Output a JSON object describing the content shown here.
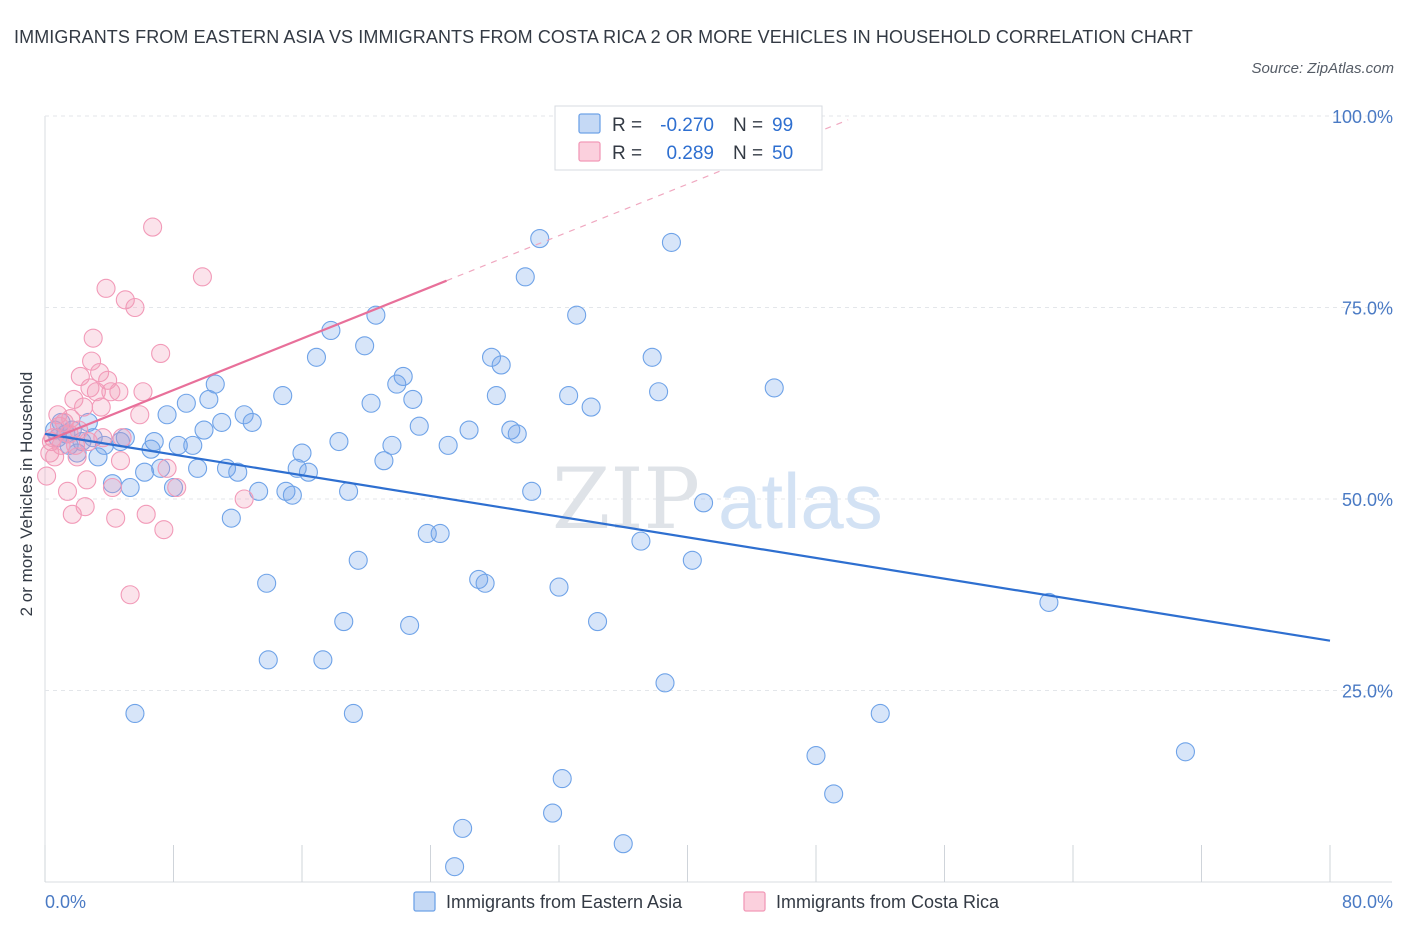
{
  "title": "IMMIGRANTS FROM EASTERN ASIA VS IMMIGRANTS FROM COSTA RICA 2 OR MORE VEHICLES IN HOUSEHOLD CORRELATION CHART",
  "source": "Source: ZipAtlas.com",
  "watermark": {
    "zip": "ZIP",
    "atlas": "atlas"
  },
  "legend": {
    "r_label": "R =",
    "n_label": "N =",
    "rows": [
      {
        "r": "-0.270",
        "n": "99",
        "color": "#6fa3e8"
      },
      {
        "r": "0.289",
        "n": "50",
        "color": "#f29ab8"
      }
    ]
  },
  "chart_data": {
    "type": "scatter",
    "ylabel": "2 or more Vehicles in Household",
    "xlim": [
      0,
      80
    ],
    "ylim": [
      0,
      100
    ],
    "x_tick_labels": [
      "0.0%",
      "80.0%"
    ],
    "y_ticks": [
      {
        "value": 25,
        "label": "25.0%"
      },
      {
        "value": 50,
        "label": "50.0%"
      },
      {
        "value": 75,
        "label": "75.0%"
      },
      {
        "value": 100,
        "label": "100.0%"
      }
    ],
    "grid": true,
    "series": [
      {
        "name": "Immigrants from Eastern Asia",
        "color": "#6fa3e8",
        "trend": {
          "x0": 0,
          "y0": 58.5,
          "x1": 80,
          "y1": 31.5
        },
        "points": [
          [
            0.6,
            59
          ],
          [
            0.8,
            58
          ],
          [
            1.0,
            60
          ],
          [
            1.3,
            58.5
          ],
          [
            1.5,
            57
          ],
          [
            1.7,
            59
          ],
          [
            2.0,
            56
          ],
          [
            2.3,
            57.5
          ],
          [
            2.7,
            60
          ],
          [
            3.0,
            58
          ],
          [
            3.3,
            55.5
          ],
          [
            3.7,
            57
          ],
          [
            4.2,
            52
          ],
          [
            4.7,
            57.5
          ],
          [
            5.0,
            58
          ],
          [
            5.3,
            51.5
          ],
          [
            5.6,
            22
          ],
          [
            6.2,
            53.5
          ],
          [
            6.6,
            56.5
          ],
          [
            6.8,
            57.5
          ],
          [
            7.2,
            54
          ],
          [
            7.6,
            61
          ],
          [
            8.0,
            51.5
          ],
          [
            8.3,
            57
          ],
          [
            8.8,
            62.5
          ],
          [
            9.2,
            57
          ],
          [
            9.5,
            54
          ],
          [
            9.9,
            59
          ],
          [
            10.2,
            63
          ],
          [
            10.6,
            65
          ],
          [
            11.0,
            60
          ],
          [
            11.3,
            54
          ],
          [
            11.6,
            47.5
          ],
          [
            12.0,
            53.5
          ],
          [
            12.4,
            61
          ],
          [
            12.9,
            60
          ],
          [
            13.3,
            51
          ],
          [
            13.8,
            39
          ],
          [
            13.9,
            29
          ],
          [
            14.8,
            63.5
          ],
          [
            15.0,
            51
          ],
          [
            15.4,
            50.5
          ],
          [
            15.7,
            54
          ],
          [
            16.0,
            56
          ],
          [
            16.4,
            53.5
          ],
          [
            16.9,
            68.5
          ],
          [
            17.3,
            29
          ],
          [
            17.8,
            72
          ],
          [
            18.3,
            57.5
          ],
          [
            18.6,
            34
          ],
          [
            18.9,
            51
          ],
          [
            19.2,
            22
          ],
          [
            19.5,
            42
          ],
          [
            19.9,
            70
          ],
          [
            20.3,
            62.5
          ],
          [
            20.6,
            74
          ],
          [
            21.1,
            55
          ],
          [
            21.6,
            57
          ],
          [
            21.9,
            65
          ],
          [
            22.3,
            66
          ],
          [
            22.7,
            33.5
          ],
          [
            22.9,
            63
          ],
          [
            23.3,
            59.5
          ],
          [
            23.8,
            45.5
          ],
          [
            24.6,
            45.5
          ],
          [
            25.1,
            57
          ],
          [
            26.0,
            7
          ],
          [
            26.4,
            59
          ],
          [
            25.5,
            2
          ],
          [
            27.0,
            39.5
          ],
          [
            27.4,
            39
          ],
          [
            27.8,
            68.5
          ],
          [
            28.1,
            63.5
          ],
          [
            28.4,
            67.5
          ],
          [
            29.0,
            59
          ],
          [
            29.4,
            58.5
          ],
          [
            29.9,
            79
          ],
          [
            30.3,
            51
          ],
          [
            30.8,
            84
          ],
          [
            31.6,
            9
          ],
          [
            32.0,
            38.5
          ],
          [
            32.2,
            13.5
          ],
          [
            32.6,
            63.5
          ],
          [
            33.1,
            74
          ],
          [
            34.0,
            62
          ],
          [
            34.4,
            34
          ],
          [
            36.0,
            5
          ],
          [
            37.1,
            44.5
          ],
          [
            37.8,
            68.5
          ],
          [
            38.2,
            64
          ],
          [
            38.6,
            26
          ],
          [
            39.0,
            83.5
          ],
          [
            40.3,
            42
          ],
          [
            41.0,
            49.5
          ],
          [
            45.4,
            64.5
          ],
          [
            48.0,
            16.5
          ],
          [
            49.1,
            11.5
          ],
          [
            52.0,
            22
          ],
          [
            62.5,
            36.5
          ],
          [
            71.0,
            17
          ]
        ]
      },
      {
        "name": "Immigrants from Costa Rica",
        "color": "#f29ab8",
        "trend": {
          "x0": 0,
          "y0": 57.5,
          "x1": 25,
          "y1": 78.5
        },
        "trend_dashed_to": {
          "x": 50,
          "y": 99.5
        },
        "points": [
          [
            0.1,
            53
          ],
          [
            0.3,
            56
          ],
          [
            0.5,
            58
          ],
          [
            0.6,
            55.5
          ],
          [
            0.8,
            61
          ],
          [
            1.0,
            57
          ],
          [
            1.2,
            60
          ],
          [
            1.4,
            51
          ],
          [
            1.5,
            58.5
          ],
          [
            1.7,
            48
          ],
          [
            1.8,
            63
          ],
          [
            1.9,
            57
          ],
          [
            2.0,
            55.5
          ],
          [
            2.1,
            59
          ],
          [
            2.2,
            66
          ],
          [
            2.4,
            62
          ],
          [
            2.5,
            49
          ],
          [
            2.6,
            52.5
          ],
          [
            2.8,
            64.5
          ],
          [
            2.9,
            68
          ],
          [
            3.0,
            71
          ],
          [
            3.2,
            64
          ],
          [
            3.4,
            66.5
          ],
          [
            3.6,
            58
          ],
          [
            3.8,
            77.5
          ],
          [
            3.9,
            65.5
          ],
          [
            4.1,
            64
          ],
          [
            4.2,
            51.5
          ],
          [
            4.4,
            47.5
          ],
          [
            4.6,
            64
          ],
          [
            4.8,
            58
          ],
          [
            5.0,
            76
          ],
          [
            5.3,
            37.5
          ],
          [
            5.6,
            75
          ],
          [
            5.9,
            61
          ],
          [
            6.1,
            64
          ],
          [
            6.3,
            48
          ],
          [
            6.7,
            85.5
          ],
          [
            7.2,
            69
          ],
          [
            7.4,
            46
          ],
          [
            7.6,
            54
          ],
          [
            8.2,
            51.5
          ],
          [
            0.4,
            57.5
          ],
          [
            0.9,
            59.5
          ],
          [
            1.6,
            60.5
          ],
          [
            2.7,
            57.5
          ],
          [
            3.5,
            62
          ],
          [
            4.7,
            55
          ],
          [
            9.8,
            79
          ],
          [
            12.4,
            50
          ]
        ]
      }
    ]
  },
  "bottom_legend": [
    "Immigrants from Eastern Asia",
    "Immigrants from Costa Rica"
  ]
}
